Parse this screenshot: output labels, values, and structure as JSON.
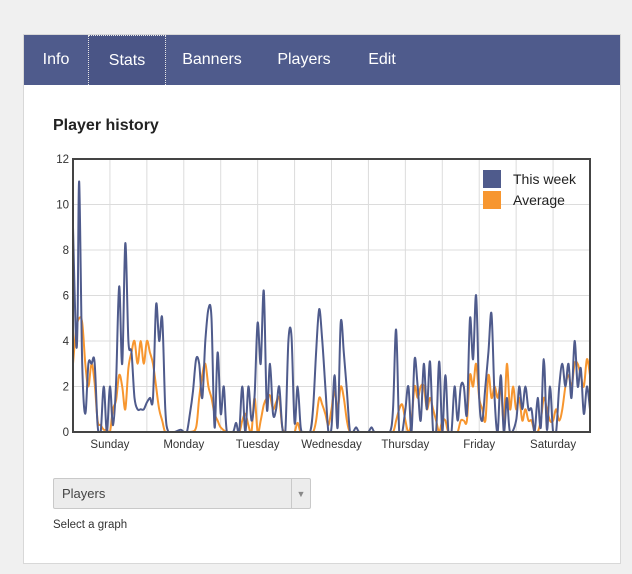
{
  "tabs": [
    {
      "label": "Info",
      "name": "tab-info",
      "active": false
    },
    {
      "label": "Stats",
      "name": "tab-stats",
      "active": true
    },
    {
      "label": "Banners",
      "name": "tab-banners",
      "active": false
    },
    {
      "label": "Players",
      "name": "tab-players",
      "active": false
    },
    {
      "label": "Edit",
      "name": "tab-edit",
      "active": false
    }
  ],
  "section_title": "Player history",
  "graph_select": {
    "selected": "Players",
    "hint": "Select a graph"
  },
  "colors": {
    "this_week": "#4f5b8c",
    "average": "#f7962f",
    "tabbar": "#4f5b8c"
  },
  "chart_data": {
    "type": "line",
    "title": "",
    "ylim": [
      0,
      12
    ],
    "yticks": [
      0,
      2,
      4,
      6,
      8,
      10,
      12
    ],
    "xlim": [
      0,
      168
    ],
    "x_unit": "hours",
    "xticks": [
      {
        "label": "Sunday",
        "x": 12
      },
      {
        "label": "Monday",
        "x": 36
      },
      {
        "label": "Tuesday",
        "x": 60
      },
      {
        "label": "Wednesday",
        "x": 84
      },
      {
        "label": "Thursday",
        "x": 108
      },
      {
        "label": "Friday",
        "x": 132
      },
      {
        "label": "Saturday",
        "x": 156
      }
    ],
    "grid": true,
    "legend_position": "top-right",
    "series": [
      {
        "name": "This week",
        "color": "#4f5b8c",
        "points": [
          [
            0,
            9
          ],
          [
            1,
            4
          ],
          [
            1.5,
            5
          ],
          [
            2,
            11
          ],
          [
            3,
            3
          ],
          [
            4,
            0.8
          ],
          [
            5,
            3
          ],
          [
            6,
            3
          ],
          [
            7,
            3.1
          ],
          [
            8,
            0.3
          ],
          [
            9,
            0
          ],
          [
            10,
            2
          ],
          [
            11,
            0
          ],
          [
            12,
            2
          ],
          [
            13,
            0.3
          ],
          [
            14,
            2.2
          ],
          [
            15,
            6.4
          ],
          [
            16,
            3
          ],
          [
            17,
            8.3
          ],
          [
            18,
            4
          ],
          [
            19,
            3.5
          ],
          [
            20,
            1.5
          ],
          [
            21,
            1
          ],
          [
            22,
            1
          ],
          [
            23,
            1
          ],
          [
            24,
            1.3
          ],
          [
            25,
            1.5
          ],
          [
            26,
            1.5
          ],
          [
            27,
            5.6
          ],
          [
            28,
            4
          ],
          [
            29,
            5
          ],
          [
            30,
            1
          ],
          [
            31,
            0
          ],
          [
            33,
            0
          ],
          [
            35,
            0.1
          ],
          [
            36,
            0
          ],
          [
            37,
            0
          ],
          [
            38,
            0.8
          ],
          [
            39,
            1.8
          ],
          [
            40,
            3.2
          ],
          [
            41,
            3
          ],
          [
            42,
            1.5
          ],
          [
            43,
            4
          ],
          [
            44,
            5.4
          ],
          [
            45,
            5
          ],
          [
            46,
            0.2
          ],
          [
            47,
            3.5
          ],
          [
            48,
            0.8
          ],
          [
            49,
            2
          ],
          [
            50,
            0
          ],
          [
            52,
            0
          ],
          [
            53,
            0.4
          ],
          [
            54,
            0
          ],
          [
            55,
            2
          ],
          [
            56,
            0
          ],
          [
            57,
            2
          ],
          [
            58,
            0.5
          ],
          [
            59,
            1.6
          ],
          [
            60,
            4.8
          ],
          [
            61,
            3
          ],
          [
            62,
            6.2
          ],
          [
            63,
            1
          ],
          [
            64,
            3
          ],
          [
            65,
            0.8
          ],
          [
            66,
            1
          ],
          [
            67,
            2
          ],
          [
            68,
            0.2
          ],
          [
            69,
            0
          ],
          [
            70,
            4
          ],
          [
            71,
            4.2
          ],
          [
            72,
            0.4
          ],
          [
            73,
            2
          ],
          [
            74,
            0.2
          ],
          [
            75,
            0
          ],
          [
            77,
            0
          ],
          [
            78,
            1
          ],
          [
            79,
            3.5
          ],
          [
            80,
            5.4
          ],
          [
            81,
            4
          ],
          [
            82,
            2
          ],
          [
            83,
            0
          ],
          [
            84,
            0.2
          ],
          [
            85,
            2.5
          ],
          [
            86,
            0.2
          ],
          [
            87,
            4.8
          ],
          [
            88,
            3.5
          ],
          [
            89,
            1.8
          ],
          [
            90,
            0
          ],
          [
            91,
            0
          ],
          [
            92,
            0.2
          ],
          [
            93,
            0
          ],
          [
            95,
            0
          ],
          [
            96,
            0
          ],
          [
            97,
            0.2
          ],
          [
            98,
            0
          ],
          [
            100,
            0
          ],
          [
            101,
            0
          ],
          [
            103,
            0
          ],
          [
            104,
            1
          ],
          [
            105,
            4.5
          ],
          [
            106,
            0
          ],
          [
            107,
            0
          ],
          [
            108,
            1
          ],
          [
            109,
            2
          ],
          [
            110,
            0
          ],
          [
            111,
            3.2
          ],
          [
            112,
            2
          ],
          [
            113,
            0.5
          ],
          [
            114,
            3
          ],
          [
            115,
            1
          ],
          [
            116,
            3.1
          ],
          [
            117,
            0
          ],
          [
            118,
            0
          ],
          [
            119,
            3.1
          ],
          [
            120,
            0
          ],
          [
            121,
            2.5
          ],
          [
            122,
            0
          ],
          [
            123,
            0
          ],
          [
            124,
            2
          ],
          [
            125,
            0.5
          ],
          [
            126,
            2
          ],
          [
            127,
            2
          ],
          [
            128,
            0.8
          ],
          [
            129,
            5
          ],
          [
            130,
            3.2
          ],
          [
            131,
            6
          ],
          [
            132,
            1.5
          ],
          [
            133,
            0.5
          ],
          [
            134,
            2
          ],
          [
            135,
            3.5
          ],
          [
            136,
            5.2
          ],
          [
            137,
            1.5
          ],
          [
            138,
            0
          ],
          [
            139,
            2.5
          ],
          [
            140,
            0
          ],
          [
            141,
            1.5
          ],
          [
            142,
            0
          ],
          [
            144,
            0.5
          ],
          [
            145,
            2
          ],
          [
            146,
            1
          ],
          [
            147,
            2
          ],
          [
            148,
            1
          ],
          [
            149,
            1
          ],
          [
            150,
            0
          ],
          [
            151,
            1.5
          ],
          [
            152,
            0.2
          ],
          [
            153,
            3.2
          ],
          [
            154,
            0.1
          ],
          [
            155,
            2
          ],
          [
            156,
            0
          ],
          [
            157,
            0
          ],
          [
            158,
            2
          ],
          [
            159,
            3
          ],
          [
            160,
            2
          ],
          [
            161,
            3
          ],
          [
            162,
            1.5
          ],
          [
            163,
            4
          ],
          [
            164,
            2
          ],
          [
            165,
            2.8
          ],
          [
            166,
            0.8
          ],
          [
            167,
            2
          ],
          [
            168,
            1
          ]
        ]
      },
      {
        "name": "Average",
        "color": "#f7962f",
        "points": [
          [
            0,
            3
          ],
          [
            1,
            4.5
          ],
          [
            2,
            5
          ],
          [
            3,
            4.8
          ],
          [
            4,
            3
          ],
          [
            5,
            2
          ],
          [
            6,
            3
          ],
          [
            7,
            2.2
          ],
          [
            8,
            0.5
          ],
          [
            9,
            0.3
          ],
          [
            10,
            0.1
          ],
          [
            11,
            0.1
          ],
          [
            12,
            0
          ],
          [
            13,
            1
          ],
          [
            14,
            1.4
          ],
          [
            15,
            2.5
          ],
          [
            16,
            2
          ],
          [
            17,
            1
          ],
          [
            18,
            2.8
          ],
          [
            19,
            3.5
          ],
          [
            20,
            4
          ],
          [
            21,
            3
          ],
          [
            22,
            4
          ],
          [
            23,
            3
          ],
          [
            24,
            4
          ],
          [
            25,
            3.5
          ],
          [
            26,
            3
          ],
          [
            27,
            2
          ],
          [
            28,
            1
          ],
          [
            29,
            0.5
          ],
          [
            30,
            0
          ],
          [
            32,
            0
          ],
          [
            34,
            0
          ],
          [
            36,
            0
          ],
          [
            38,
            0
          ],
          [
            40,
            0.2
          ],
          [
            41,
            1.5
          ],
          [
            42,
            2.5
          ],
          [
            43,
            3
          ],
          [
            44,
            2
          ],
          [
            45,
            1.5
          ],
          [
            46,
            0.8
          ],
          [
            47,
            0.5
          ],
          [
            48,
            0.2
          ],
          [
            50,
            0
          ],
          [
            52,
            0
          ],
          [
            54,
            0
          ],
          [
            55,
            0.5
          ],
          [
            56,
            0.8
          ],
          [
            57,
            0.3
          ],
          [
            58,
            0
          ],
          [
            59,
            1.5
          ],
          [
            60,
            0
          ],
          [
            61,
            0.5
          ],
          [
            62,
            1.2
          ],
          [
            63,
            1.5
          ],
          [
            64,
            1.6
          ],
          [
            65,
            1
          ],
          [
            66,
            1.3
          ],
          [
            67,
            1.5
          ],
          [
            68,
            0.2
          ],
          [
            69,
            0
          ],
          [
            70,
            0
          ],
          [
            71,
            0
          ],
          [
            72,
            0
          ],
          [
            73,
            0.4
          ],
          [
            74,
            0
          ],
          [
            76,
            0
          ],
          [
            78,
            0
          ],
          [
            79,
            0.5
          ],
          [
            80,
            1.5
          ],
          [
            81,
            1.2
          ],
          [
            82,
            0.8
          ],
          [
            83,
            0.3
          ],
          [
            84,
            1
          ],
          [
            85,
            1.8
          ],
          [
            86,
            1
          ],
          [
            87,
            2
          ],
          [
            88,
            1.5
          ],
          [
            89,
            0.5
          ],
          [
            90,
            0
          ],
          [
            92,
            0
          ],
          [
            94,
            0
          ],
          [
            96,
            0
          ],
          [
            98,
            0
          ],
          [
            100,
            0
          ],
          [
            102,
            0
          ],
          [
            104,
            0
          ],
          [
            105,
            0.5
          ],
          [
            106,
            1
          ],
          [
            107,
            1.2
          ],
          [
            108,
            0.5
          ],
          [
            109,
            0
          ],
          [
            110,
            0.5
          ],
          [
            111,
            2
          ],
          [
            112,
            1.5
          ],
          [
            113,
            2
          ],
          [
            114,
            2
          ],
          [
            115,
            1
          ],
          [
            116,
            1.5
          ],
          [
            117,
            1
          ],
          [
            118,
            0.5
          ],
          [
            119,
            0
          ],
          [
            120,
            0.5
          ],
          [
            121,
            0.5
          ],
          [
            122,
            0
          ],
          [
            124,
            0
          ],
          [
            125,
            0
          ],
          [
            126,
            0.5
          ],
          [
            127,
            0.5
          ],
          [
            128,
            0.5
          ],
          [
            129,
            2.5
          ],
          [
            130,
            2
          ],
          [
            131,
            3
          ],
          [
            132,
            1.5
          ],
          [
            133,
            1
          ],
          [
            134,
            0.5
          ],
          [
            135,
            2.5
          ],
          [
            136,
            1.5
          ],
          [
            137,
            2
          ],
          [
            138,
            1.5
          ],
          [
            139,
            2
          ],
          [
            140,
            0.5
          ],
          [
            141,
            3
          ],
          [
            142,
            1
          ],
          [
            143,
            2
          ],
          [
            144,
            1
          ],
          [
            145,
            1.5
          ],
          [
            146,
            0.5
          ],
          [
            147,
            1
          ],
          [
            148,
            0.5
          ],
          [
            149,
            0.5
          ],
          [
            150,
            0
          ],
          [
            151,
            0
          ],
          [
            152,
            0.5
          ],
          [
            153,
            1.5
          ],
          [
            154,
            1
          ],
          [
            155,
            0.5
          ],
          [
            156,
            0.5
          ],
          [
            157,
            1
          ],
          [
            158,
            0.5
          ],
          [
            159,
            1
          ],
          [
            160,
            2
          ],
          [
            161,
            2.5
          ],
          [
            162,
            2
          ],
          [
            163,
            3
          ],
          [
            164,
            3
          ],
          [
            165,
            2.5
          ],
          [
            166,
            2
          ],
          [
            167,
            3.2
          ],
          [
            168,
            2.5
          ]
        ]
      }
    ]
  }
}
